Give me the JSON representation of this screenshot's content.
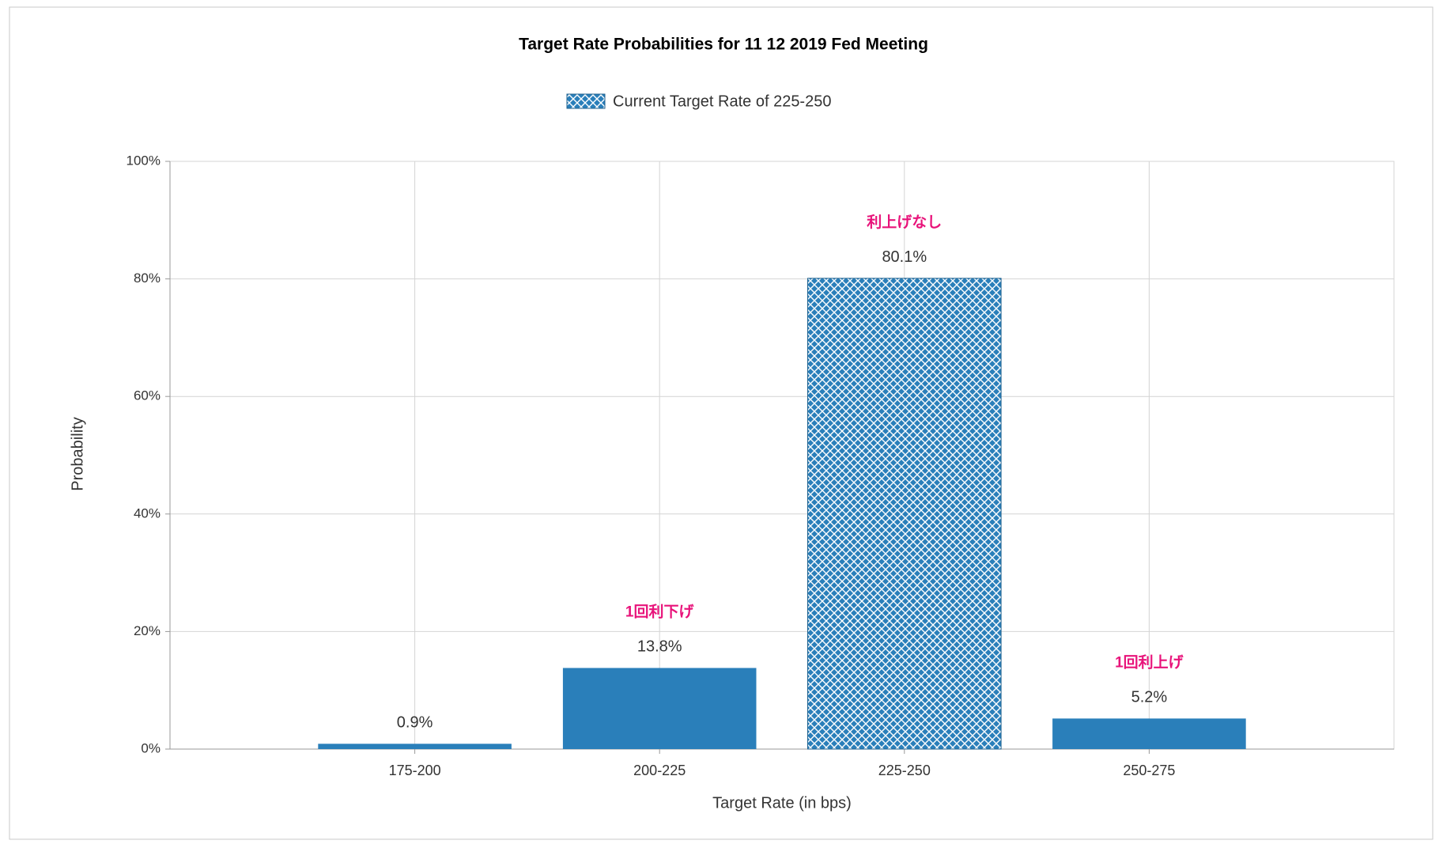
{
  "chart_data": {
    "type": "bar",
    "title": "Target Rate Probabilities for 11 12 2019 Fed Meeting",
    "legend": "Current Target Rate of 225-250",
    "x_label": "Target Rate (in bps)",
    "y_label": "Probability",
    "categories": [
      "175-200",
      "200-225",
      "225-250",
      "250-275"
    ],
    "values": [
      0.9,
      13.8,
      80.1,
      5.2
    ],
    "value_labels": [
      "0.9%",
      "13.8%",
      "80.1%",
      "5.2%"
    ],
    "annotations": [
      null,
      "1回利下げ",
      "利上げなし",
      "1回利上げ"
    ],
    "hatched": [
      false,
      false,
      true,
      false
    ],
    "color": "#2a7fba",
    "annotation_color": "#e8137a",
    "ylim": [
      0,
      100
    ],
    "yticks": [
      {
        "value": 0,
        "label": "0%"
      },
      {
        "value": 20,
        "label": "20%"
      },
      {
        "value": 40,
        "label": "40%"
      },
      {
        "value": 60,
        "label": "60%"
      },
      {
        "value": 80,
        "label": "80%"
      },
      {
        "value": 100,
        "label": "100%"
      }
    ],
    "grid": true
  }
}
